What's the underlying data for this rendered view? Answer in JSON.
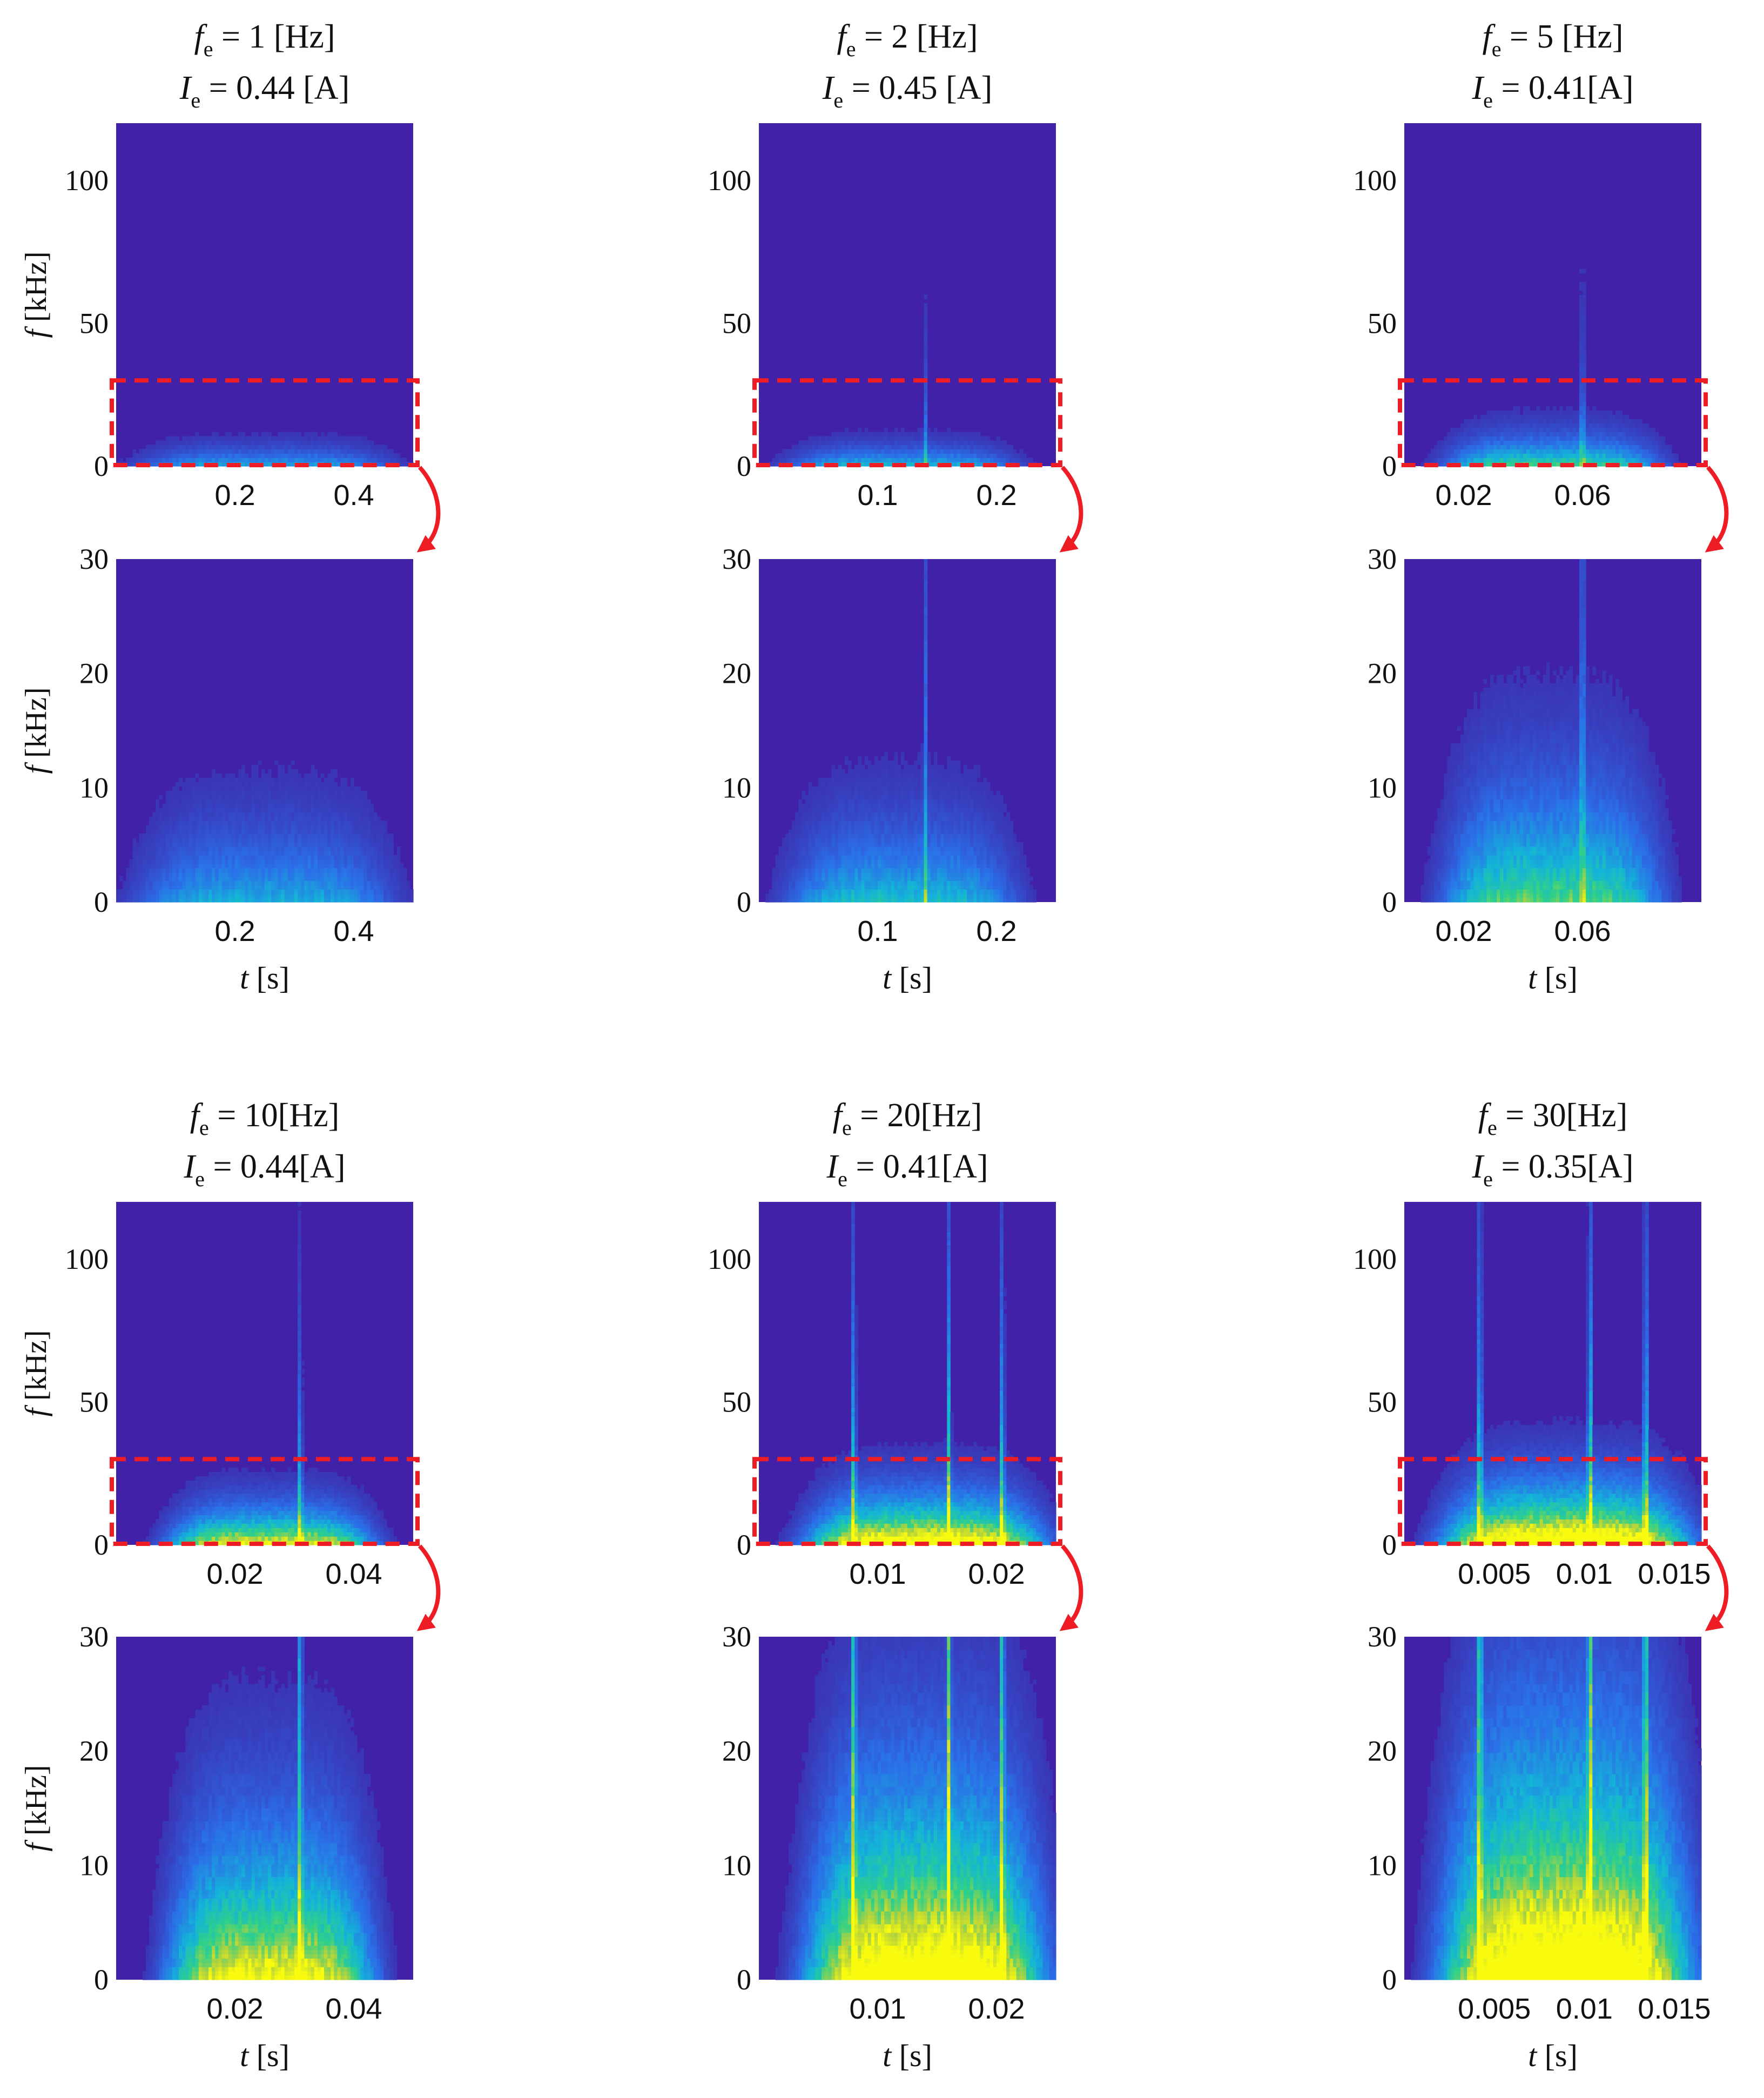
{
  "figure": {
    "panels": [
      {
        "f_label": "f",
        "f_sub": "e",
        "f_value": " = 1 [Hz]",
        "i_label": "I",
        "i_sub": "e",
        "i_value": " = 0.44 [A]"
      },
      {
        "f_label": "f",
        "f_sub": "e",
        "f_value": " = 2 [Hz]",
        "i_label": "I",
        "i_sub": "e",
        "i_value": " = 0.45 [A]"
      },
      {
        "f_label": "f",
        "f_sub": "e",
        "f_value": " = 5 [Hz]",
        "i_label": "I",
        "i_sub": "e",
        "i_value": " = 0.41[A]"
      },
      {
        "f_label": "f",
        "f_sub": "e",
        "f_value": " = 10[Hz]",
        "i_label": "I",
        "i_sub": "e",
        "i_value": " = 0.44[A]"
      },
      {
        "f_label": "f",
        "f_sub": "e",
        "f_value": " = 20[Hz]",
        "i_label": "I",
        "i_sub": "e",
        "i_value": " = 0.41[A]"
      },
      {
        "f_label": "f",
        "f_sub": "e",
        "f_value": " = 30[Hz]",
        "i_label": "I",
        "i_sub": "e",
        "i_value": " = 0.35[A]"
      }
    ],
    "ylabel_italic": "f",
    "ylabel_unit": " [kHz]",
    "xlabel_italic": "t",
    "xlabel_unit": " [s]",
    "colors": {
      "background": "#4021a8",
      "highlight_box": "#ee1c24",
      "arrow": "#ee1c24",
      "colormap": [
        "#3e26a8",
        "#2b6ee8",
        "#14b4d8",
        "#2fd08a",
        "#b6d33a",
        "#f9fb0e"
      ]
    }
  },
  "chart_data": [
    {
      "type": "heatmap",
      "panel": "f_e = 1 Hz, full range",
      "xlabel": "",
      "ylabel": "f [kHz]",
      "xlim": [
        0,
        0.5
      ],
      "ylim": [
        0,
        120
      ],
      "xticks": [
        0.2,
        0.4
      ],
      "xtick_labels": [
        "0.2",
        "0.4"
      ],
      "yticks": [
        0,
        50,
        100
      ],
      "ytick_labels": [
        "0",
        "50",
        "100"
      ],
      "zoom_box_khz": [
        0,
        30
      ],
      "intensity": 0.35,
      "spread_khz": 5,
      "center_s": 0.25,
      "width_s": 0.18,
      "spikes_s": []
    },
    {
      "type": "heatmap",
      "panel": "f_e = 1 Hz, zoom",
      "xlabel": "t [s]",
      "ylabel": "f [kHz]",
      "xlim": [
        0,
        0.5
      ],
      "ylim": [
        0,
        30
      ],
      "xticks": [
        0.2,
        0.4
      ],
      "xtick_labels": [
        "0.2",
        "0.4"
      ],
      "yticks": [
        0,
        10,
        20,
        30
      ],
      "ytick_labels": [
        "0",
        "10",
        "20",
        "30"
      ],
      "intensity": 0.35,
      "spread_khz": 5,
      "center_s": 0.25,
      "width_s": 0.18,
      "spikes_s": []
    },
    {
      "type": "heatmap",
      "panel": "f_e = 2 Hz, full range",
      "xlabel": "",
      "ylabel": "",
      "xlim": [
        0,
        0.25
      ],
      "ylim": [
        0,
        120
      ],
      "xticks": [
        0.1,
        0.2
      ],
      "xtick_labels": [
        "0.1",
        "0.2"
      ],
      "yticks": [
        0,
        50,
        100
      ],
      "ytick_labels": [
        "0",
        "50",
        "100"
      ],
      "zoom_box_khz": [
        0,
        30
      ],
      "intensity": 0.42,
      "spread_khz": 5,
      "center_s": 0.12,
      "width_s": 0.08,
      "spikes_s": [
        0.14
      ]
    },
    {
      "type": "heatmap",
      "panel": "f_e = 2 Hz, zoom",
      "xlabel": "t [s]",
      "ylabel": "",
      "xlim": [
        0,
        0.25
      ],
      "ylim": [
        0,
        30
      ],
      "xticks": [
        0.1,
        0.2
      ],
      "xtick_labels": [
        "0.1",
        "0.2"
      ],
      "yticks": [
        0,
        10,
        20,
        30
      ],
      "ytick_labels": [
        "0",
        "10",
        "20",
        "30"
      ],
      "intensity": 0.42,
      "spread_khz": 5,
      "center_s": 0.12,
      "width_s": 0.08,
      "spikes_s": [
        0.14
      ]
    },
    {
      "type": "heatmap",
      "panel": "f_e = 5 Hz, full range",
      "xlabel": "",
      "ylabel": "",
      "xlim": [
        0,
        0.1
      ],
      "ylim": [
        0,
        120
      ],
      "xticks": [
        0.02,
        0.06
      ],
      "xtick_labels": [
        "0.02",
        "0.06"
      ],
      "yticks": [
        0,
        50,
        100
      ],
      "ytick_labels": [
        "0",
        "50",
        "100"
      ],
      "zoom_box_khz": [
        0,
        30
      ],
      "intensity": 0.6,
      "spread_khz": 7,
      "center_s": 0.05,
      "width_s": 0.03,
      "spikes_s": [
        0.06
      ]
    },
    {
      "type": "heatmap",
      "panel": "f_e = 5 Hz, zoom",
      "xlabel": "t [s]",
      "ylabel": "",
      "xlim": [
        0,
        0.1
      ],
      "ylim": [
        0,
        30
      ],
      "xticks": [
        0.02,
        0.06
      ],
      "xtick_labels": [
        "0.02",
        "0.06"
      ],
      "yticks": [
        0,
        10,
        20,
        30
      ],
      "ytick_labels": [
        "0",
        "10",
        "20",
        "30"
      ],
      "intensity": 0.6,
      "spread_khz": 7,
      "center_s": 0.05,
      "width_s": 0.03,
      "spikes_s": [
        0.06
      ]
    },
    {
      "type": "heatmap",
      "panel": "f_e = 10 Hz, full range",
      "xlabel": "",
      "ylabel": "f [kHz]",
      "xlim": [
        0,
        0.05
      ],
      "ylim": [
        0,
        120
      ],
      "xticks": [
        0.02,
        0.04
      ],
      "xtick_labels": [
        "0.02",
        "0.04"
      ],
      "yticks": [
        0,
        50,
        100
      ],
      "ytick_labels": [
        "0",
        "50",
        "100"
      ],
      "zoom_box_khz": [
        0,
        30
      ],
      "intensity": 0.95,
      "spread_khz": 8,
      "center_s": 0.026,
      "width_s": 0.014,
      "spikes_s": [
        0.031
      ]
    },
    {
      "type": "heatmap",
      "panel": "f_e = 10 Hz, zoom",
      "xlabel": "t [s]",
      "ylabel": "f [kHz]",
      "xlim": [
        0,
        0.05
      ],
      "ylim": [
        0,
        30
      ],
      "xticks": [
        0.02,
        0.04
      ],
      "xtick_labels": [
        "0.02",
        "0.04"
      ],
      "yticks": [
        0,
        10,
        20,
        30
      ],
      "ytick_labels": [
        "0",
        "10",
        "20",
        "30"
      ],
      "intensity": 0.95,
      "spread_khz": 8,
      "center_s": 0.026,
      "width_s": 0.014,
      "spikes_s": [
        0.031
      ]
    },
    {
      "type": "heatmap",
      "panel": "f_e = 20 Hz, full range",
      "xlabel": "",
      "ylabel": "",
      "xlim": [
        0,
        0.025
      ],
      "ylim": [
        0,
        120
      ],
      "xticks": [
        0.01,
        0.02
      ],
      "xtick_labels": [
        "0.01",
        "0.02"
      ],
      "yticks": [
        0,
        50,
        100
      ],
      "ytick_labels": [
        "0",
        "50",
        "100"
      ],
      "zoom_box_khz": [
        0,
        30
      ],
      "intensity": 1.2,
      "spread_khz": 10,
      "center_s": 0.014,
      "width_s": 0.008,
      "spikes_s": [
        0.008,
        0.016,
        0.0205
      ]
    },
    {
      "type": "heatmap",
      "panel": "f_e = 20 Hz, zoom",
      "xlabel": "t [s]",
      "ylabel": "",
      "xlim": [
        0,
        0.025
      ],
      "ylim": [
        0,
        30
      ],
      "xticks": [
        0.01,
        0.02
      ],
      "xtick_labels": [
        "0.01",
        "0.02"
      ],
      "yticks": [
        0,
        10,
        20,
        30
      ],
      "ytick_labels": [
        "0",
        "10",
        "20",
        "30"
      ],
      "intensity": 1.2,
      "spread_khz": 10,
      "center_s": 0.014,
      "width_s": 0.008,
      "spikes_s": [
        0.008,
        0.016,
        0.0205
      ]
    },
    {
      "type": "heatmap",
      "panel": "f_e = 30 Hz, full range",
      "xlabel": "",
      "ylabel": "",
      "xlim": [
        0,
        0.0165
      ],
      "ylim": [
        0,
        120
      ],
      "xticks": [
        0.005,
        0.01,
        0.015
      ],
      "xtick_labels": [
        "0.005",
        "0.01",
        "0.015"
      ],
      "yticks": [
        0,
        50,
        100
      ],
      "ytick_labels": [
        "0",
        "50",
        "100"
      ],
      "zoom_box_khz": [
        0,
        30
      ],
      "intensity": 1.3,
      "spread_khz": 12,
      "center_s": 0.009,
      "width_s": 0.0055,
      "spikes_s": [
        0.0042,
        0.0103,
        0.0134
      ]
    },
    {
      "type": "heatmap",
      "panel": "f_e = 30 Hz, zoom",
      "xlabel": "t [s]",
      "ylabel": "",
      "xlim": [
        0,
        0.0165
      ],
      "ylim": [
        0,
        30
      ],
      "xticks": [
        0.005,
        0.01,
        0.015
      ],
      "xtick_labels": [
        "0.005",
        "0.01",
        "0.015"
      ],
      "yticks": [
        0,
        10,
        20,
        30
      ],
      "ytick_labels": [
        "0",
        "10",
        "20",
        "30"
      ],
      "intensity": 1.3,
      "spread_khz": 12,
      "center_s": 0.009,
      "width_s": 0.0055,
      "spikes_s": [
        0.0042,
        0.0103,
        0.0134
      ]
    }
  ]
}
